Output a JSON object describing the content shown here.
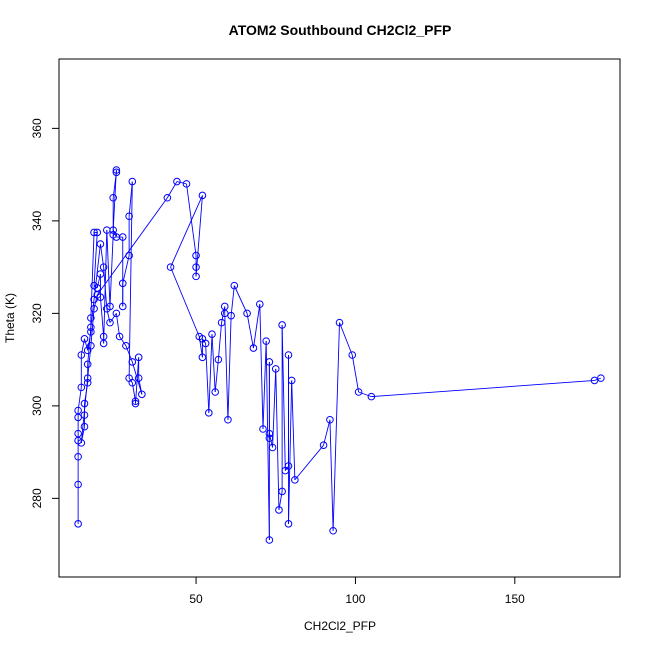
{
  "chart_data": {
    "type": "line",
    "title": "ATOM2 Southbound CH2Cl2_PFP",
    "xlabel": "CH2Cl2_PFP",
    "ylabel": "Theta (K)",
    "xlim": [
      7,
      183
    ],
    "ylim": [
      263,
      375
    ],
    "xticks": [
      50,
      100,
      150
    ],
    "yticks": [
      280,
      300,
      320,
      340,
      360
    ],
    "xtick_labels": [
      "50",
      "100",
      "150"
    ],
    "ytick_labels": [
      "280",
      "300",
      "320",
      "340",
      "360"
    ],
    "grid": false,
    "legend": "none",
    "series": [
      {
        "color": "#0000ff",
        "marker": "open-circle",
        "points": [
          [
            13,
            274.5
          ],
          [
            13,
            283
          ],
          [
            13,
            289
          ],
          [
            13,
            292.5
          ],
          [
            13,
            294
          ],
          [
            13,
            297.5
          ],
          [
            13,
            299
          ],
          [
            14,
            304
          ],
          [
            14,
            311
          ],
          [
            15,
            314.5
          ],
          [
            16,
            312
          ],
          [
            17,
            316
          ],
          [
            17,
            319
          ],
          [
            18,
            337.5
          ],
          [
            19,
            337.5
          ],
          [
            18,
            326
          ],
          [
            19,
            325.5
          ],
          [
            20,
            328.5
          ],
          [
            20,
            323.5
          ],
          [
            21,
            315
          ],
          [
            21,
            313.5
          ],
          [
            22,
            338
          ],
          [
            23,
            321.5
          ],
          [
            24,
            337
          ],
          [
            24,
            345
          ],
          [
            25,
            350.5
          ],
          [
            25,
            351
          ],
          [
            24,
            338
          ],
          [
            25,
            336.5
          ],
          [
            27,
            336.5
          ],
          [
            27,
            321.5
          ],
          [
            27,
            326.5
          ],
          [
            29,
            332.5
          ],
          [
            29,
            341
          ],
          [
            30,
            348.5
          ],
          [
            29,
            306
          ],
          [
            30,
            305
          ],
          [
            31,
            301
          ],
          [
            31,
            300.5
          ],
          [
            32,
            310.5
          ],
          [
            32,
            306
          ],
          [
            33,
            302.5
          ],
          [
            30,
            309.5
          ],
          [
            28,
            313
          ],
          [
            26,
            315
          ],
          [
            25,
            320
          ],
          [
            23,
            318
          ],
          [
            22,
            321
          ],
          [
            21,
            330
          ],
          [
            20,
            335
          ],
          [
            18,
            323
          ],
          [
            17,
            317
          ],
          [
            16,
            309
          ],
          [
            16,
            305
          ],
          [
            15,
            300.5
          ],
          [
            15,
            298
          ],
          [
            15,
            295.5
          ],
          [
            14,
            292
          ],
          [
            16,
            306
          ],
          [
            17,
            313
          ],
          [
            18,
            321
          ],
          [
            19,
            324
          ],
          [
            41,
            345
          ],
          [
            44,
            348.5
          ],
          [
            47,
            348
          ],
          [
            50,
            332.5
          ],
          [
            50,
            330
          ],
          [
            50,
            328
          ],
          [
            52,
            345.5
          ],
          [
            42,
            330
          ],
          [
            51,
            315
          ],
          [
            52,
            310.5
          ],
          [
            52,
            314.5
          ],
          [
            53,
            313.5
          ],
          [
            54,
            298.5
          ],
          [
            55,
            315.5
          ],
          [
            56,
            303
          ],
          [
            57,
            310
          ],
          [
            58,
            318
          ],
          [
            59,
            321.5
          ],
          [
            59,
            320
          ],
          [
            60,
            297
          ],
          [
            61,
            319.5
          ],
          [
            62,
            326
          ],
          [
            66,
            320
          ],
          [
            68,
            312.5
          ],
          [
            70,
            322
          ],
          [
            71,
            295
          ],
          [
            72,
            314
          ],
          [
            73,
            271
          ],
          [
            73,
            309.5
          ],
          [
            73,
            293
          ],
          [
            73,
            294
          ],
          [
            74,
            291
          ],
          [
            75,
            308
          ],
          [
            76,
            277.5
          ],
          [
            77,
            281.5
          ],
          [
            77,
            317.5
          ],
          [
            78,
            286
          ],
          [
            79,
            287
          ],
          [
            79,
            311
          ],
          [
            79,
            274.5
          ],
          [
            80,
            305.5
          ],
          [
            81,
            284
          ],
          [
            90,
            291.5
          ],
          [
            92,
            297
          ],
          [
            93,
            273
          ],
          [
            95,
            318
          ],
          [
            99,
            311
          ],
          [
            101,
            303
          ],
          [
            105,
            302
          ],
          [
            175,
            305.5
          ],
          [
            177,
            306
          ]
        ]
      }
    ]
  }
}
